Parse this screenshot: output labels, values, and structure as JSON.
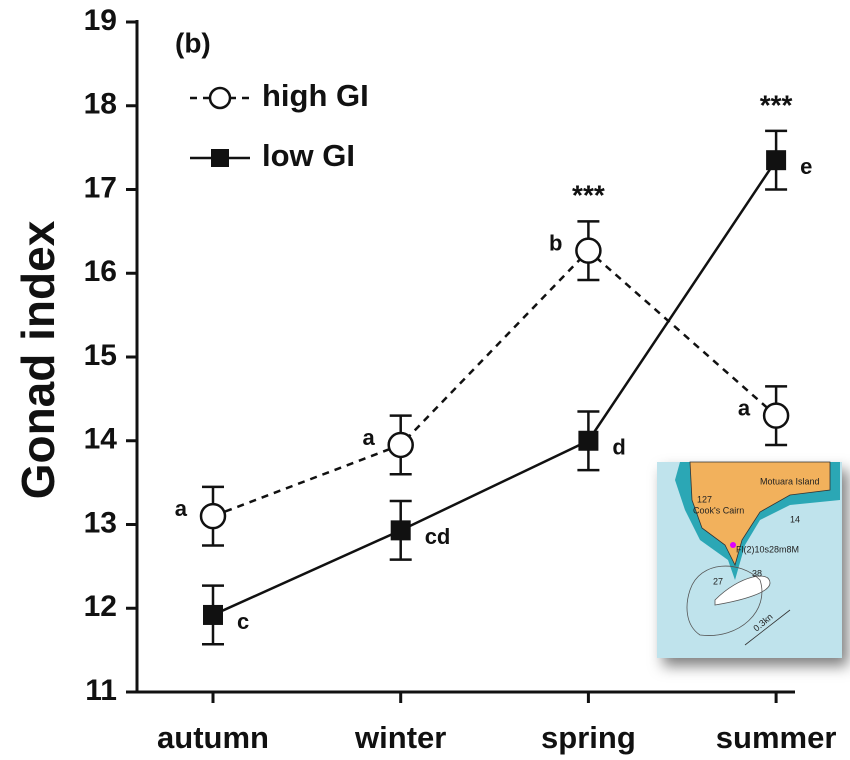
{
  "chart_data": {
    "type": "line",
    "panel_label": "(b)",
    "y_label": "Gonad index",
    "categories": [
      "autumn",
      "winter",
      "spring",
      "summer"
    ],
    "ylim": [
      11,
      19
    ],
    "yticks": [
      11,
      12,
      13,
      14,
      15,
      16,
      17,
      18,
      19
    ],
    "legend": "upper left",
    "series": [
      {
        "name": "high GI",
        "color": "#111111",
        "linestyle": "dashed",
        "marker": "open-circle",
        "values": [
          13.1,
          13.95,
          16.27,
          14.3
        ],
        "errors": [
          0.35,
          0.35,
          0.35,
          0.35
        ],
        "annotations": [
          "a",
          "a",
          "b",
          "a"
        ]
      },
      {
        "name": "low GI",
        "color": "#111111",
        "linestyle": "solid",
        "marker": "filled-square",
        "values": [
          11.92,
          12.93,
          14.0,
          17.35
        ],
        "errors": [
          0.35,
          0.35,
          0.35,
          0.35
        ],
        "annotations": [
          "c",
          "cd",
          "d",
          "e"
        ]
      }
    ],
    "significance": [
      null,
      null,
      "***",
      "***"
    ],
    "inset": {
      "labels": [
        "Motuara Island",
        "127",
        "Cook's Cairn",
        "Fl(2)10s28m8M",
        "0.3kn",
        "27",
        "38",
        "14"
      ]
    }
  }
}
